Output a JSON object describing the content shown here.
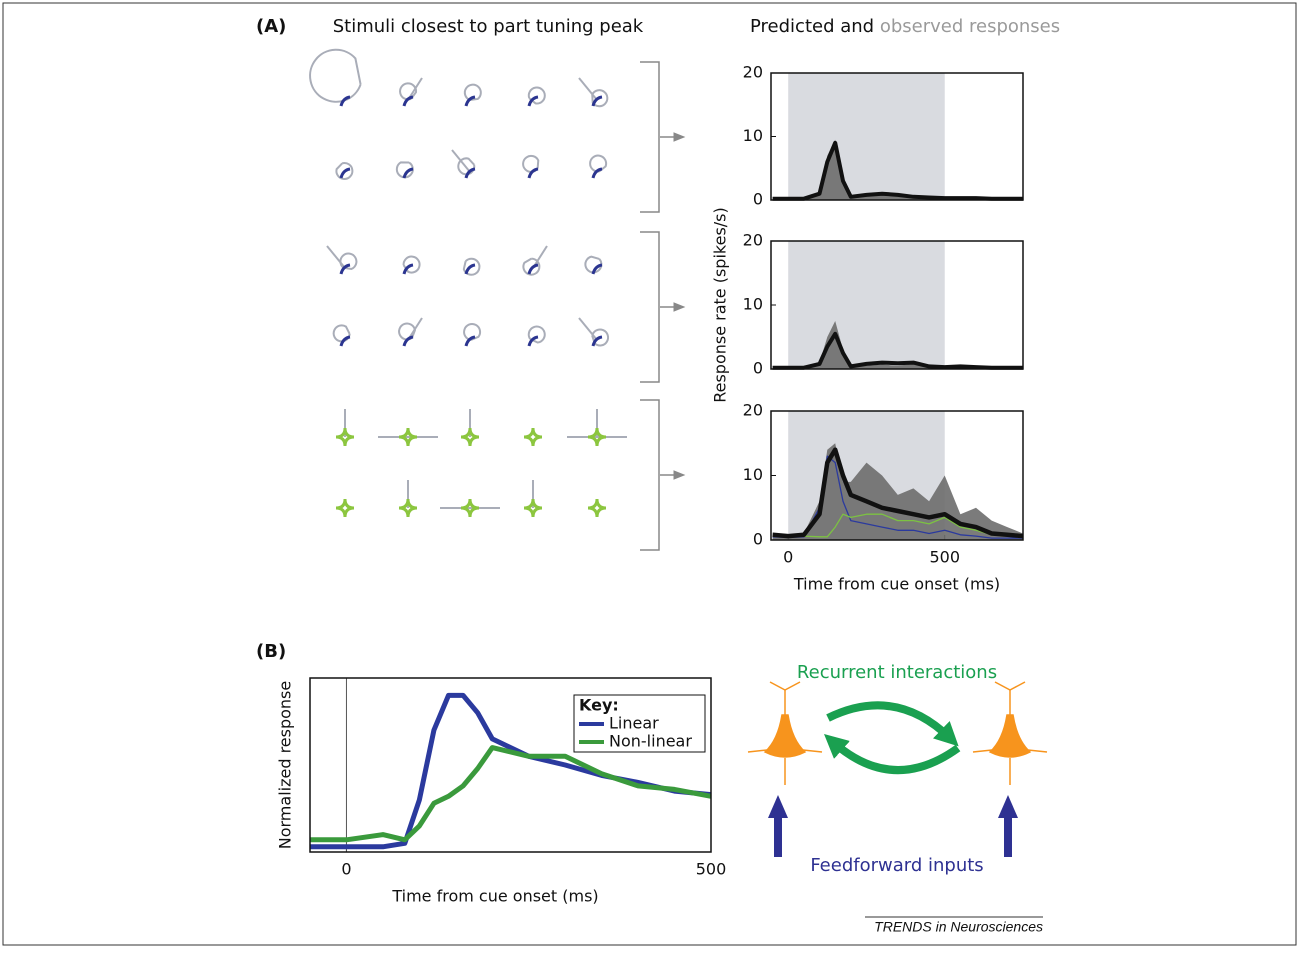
{
  "panel_labels": [
    "(A)",
    "(B)"
  ],
  "headings": {
    "stimuli": "Stimuli closest to part tuning peak",
    "predicted": "Predicted and",
    "observed": "observed responses"
  },
  "chart_data": [
    {
      "type": "line",
      "xlim": [
        -55,
        750
      ],
      "ylim": [
        0,
        20
      ],
      "yticks": [
        0,
        10,
        20
      ],
      "stimulus_period": [
        0,
        500
      ],
      "x": [
        -50,
        0,
        50,
        100,
        125,
        150,
        175,
        200,
        250,
        300,
        350,
        400,
        450,
        500,
        550,
        600,
        650,
        700,
        750
      ],
      "series": [
        {
          "style": "area",
          "color": "#6d6d6d",
          "values": [
            0.1,
            0.1,
            0.1,
            1,
            7,
            9.5,
            3,
            0.3,
            0.6,
            0.8,
            0.6,
            0.4,
            0.3,
            0.2,
            0.2,
            0.3,
            0.1,
            0.1,
            0.1
          ]
        },
        {
          "style": "line",
          "color": "#111111",
          "values": [
            0.2,
            0.2,
            0.2,
            1,
            6,
            9,
            3,
            0.5,
            0.8,
            1,
            0.8,
            0.5,
            0.4,
            0.3,
            0.3,
            0.3,
            0.2,
            0.2,
            0.2
          ]
        }
      ]
    },
    {
      "type": "line",
      "xlim": [
        -55,
        750
      ],
      "ylim": [
        0,
        20
      ],
      "yticks": [
        0,
        10,
        20
      ],
      "stimulus_period": [
        0,
        500
      ],
      "y_label": "Response rate (spikes/s)",
      "x": [
        -50,
        0,
        50,
        100,
        125,
        150,
        175,
        200,
        250,
        300,
        350,
        400,
        450,
        500,
        550,
        600,
        650,
        700,
        750
      ],
      "series": [
        {
          "style": "area",
          "color": "#6d6d6d",
          "values": [
            0.1,
            0.1,
            0.1,
            1,
            5,
            7.5,
            3,
            0.3,
            0.5,
            0.7,
            0.5,
            0.8,
            0.3,
            0.2,
            0.3,
            0.2,
            0.1,
            0.1,
            0.1
          ]
        },
        {
          "style": "line",
          "color": "#111111",
          "values": [
            0.2,
            0.2,
            0.2,
            0.8,
            3.5,
            5.5,
            2.5,
            0.4,
            0.8,
            1,
            0.9,
            1,
            0.4,
            0.3,
            0.4,
            0.3,
            0.2,
            0.2,
            0.2
          ]
        }
      ]
    },
    {
      "type": "line",
      "xlim": [
        -55,
        750
      ],
      "ylim": [
        0,
        20
      ],
      "yticks": [
        0,
        10,
        20
      ],
      "xticks": [
        0,
        500
      ],
      "stimulus_period": [
        0,
        500
      ],
      "x_label": "Time from cue onset (ms)",
      "x": [
        -50,
        0,
        50,
        100,
        125,
        150,
        175,
        200,
        250,
        300,
        350,
        400,
        450,
        500,
        550,
        600,
        650,
        700,
        750
      ],
      "series": [
        {
          "style": "area",
          "color": "#6d6d6d",
          "values": [
            0.6,
            0.6,
            1,
            6,
            14,
            15,
            9,
            9,
            12,
            10,
            7,
            8,
            6,
            10,
            4,
            5,
            3,
            2,
            1
          ]
        },
        {
          "style": "line",
          "color": "#2b3a9e",
          "values": [
            0.5,
            0.4,
            0.5,
            5,
            13,
            12,
            6,
            3,
            2.5,
            2,
            1.5,
            1.5,
            1,
            1.5,
            0.8,
            0.6,
            0.3,
            0.3,
            0.3
          ]
        },
        {
          "style": "line",
          "color": "#7cc242",
          "values": [
            0.6,
            0.5,
            0.6,
            0.5,
            0.5,
            2,
            4,
            3.5,
            4,
            4,
            3,
            3,
            2.5,
            3.5,
            2,
            1.5,
            0.8,
            0.6,
            0.4
          ]
        },
        {
          "style": "line",
          "color": "#111111",
          "values": [
            0.8,
            0.6,
            0.8,
            4,
            12,
            14,
            10,
            7,
            6,
            5,
            4.5,
            4,
            3.5,
            4,
            2.5,
            2,
            1,
            0.8,
            0.6
          ]
        }
      ]
    },
    {
      "type": "line",
      "xlim": [
        -50,
        500
      ],
      "ylim": [
        0,
        1
      ],
      "xticks": [
        0,
        500
      ],
      "x_label": "Time from cue onset (ms)",
      "y_label": "Normalized response",
      "legend_title": "Key:",
      "legend": "upper-right",
      "x": [
        -50,
        0,
        50,
        80,
        100,
        120,
        140,
        160,
        180,
        200,
        250,
        300,
        350,
        400,
        450,
        500
      ],
      "series": [
        {
          "name": "Linear",
          "style": "line",
          "color": "#2b3a9e",
          "values": [
            0.03,
            0.03,
            0.03,
            0.05,
            0.3,
            0.7,
            0.9,
            0.9,
            0.8,
            0.65,
            0.55,
            0.5,
            0.44,
            0.4,
            0.35,
            0.33
          ]
        },
        {
          "name": "Non-linear",
          "style": "line",
          "color": "#3a9a3c",
          "values": [
            0.07,
            0.07,
            0.1,
            0.07,
            0.15,
            0.28,
            0.32,
            0.38,
            0.48,
            0.6,
            0.55,
            0.55,
            0.45,
            0.38,
            0.36,
            0.32
          ]
        }
      ]
    }
  ],
  "diagram": {
    "recurrent_label": "Recurrent interactions",
    "feedforward_label": "Feedforward inputs"
  },
  "footer": "TRENDS in Neurosciences"
}
